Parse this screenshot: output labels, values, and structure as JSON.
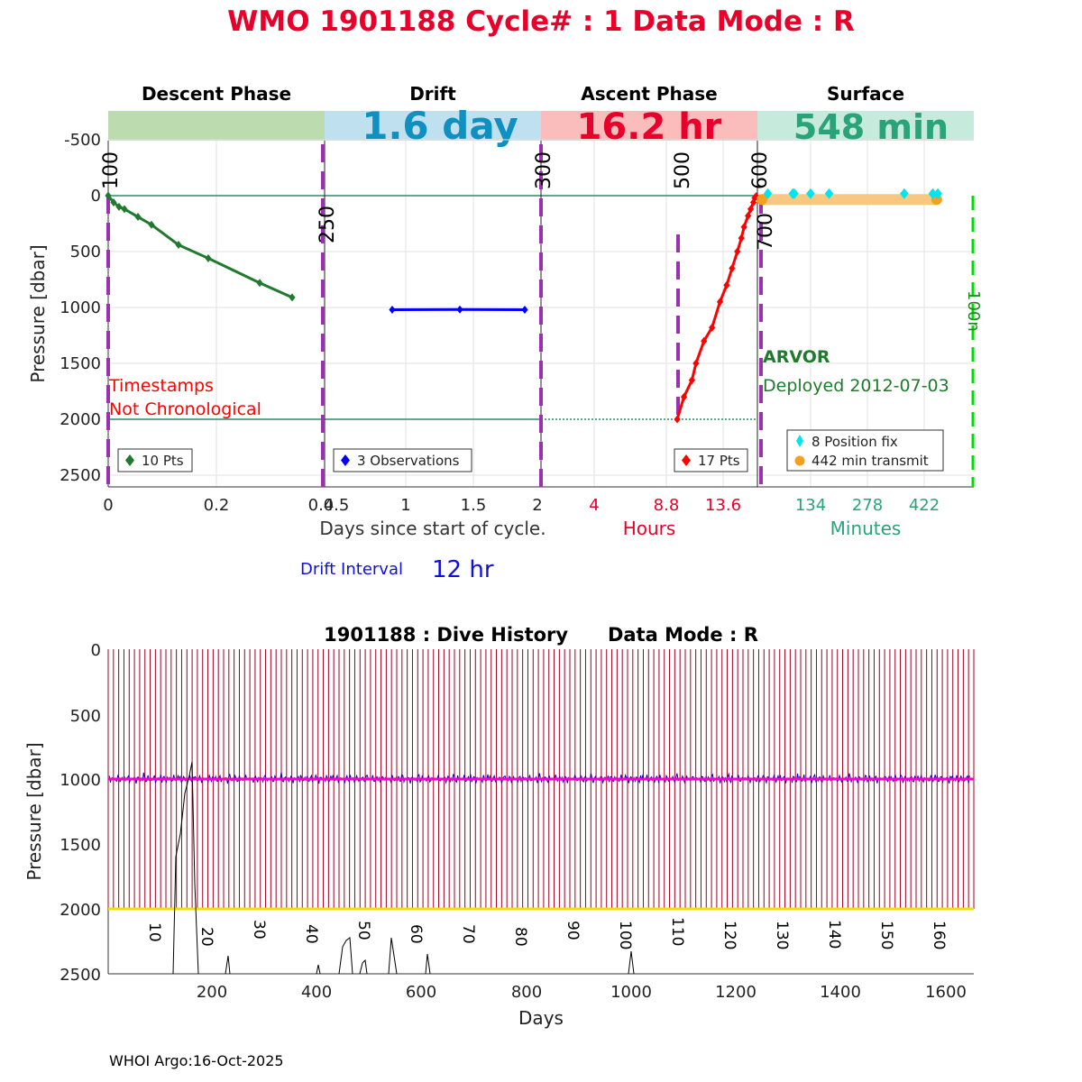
{
  "header": {
    "title": "WMO 1901188   Cycle# : 1   Data Mode : R"
  },
  "colors": {
    "title": "#e8002a",
    "descent": "#1f7a2e",
    "drift": "#0000ff",
    "ascent": "#ff0000",
    "surface_fix": "#00e5ee",
    "surface_transmit": "#f5a020",
    "surface_text": "#2aa27a",
    "phase_guide": "#9b30b0",
    "surface_limit": "#00dd00",
    "history_cycle_lines": "#a00020",
    "history_drift": "#0000cc",
    "history_target": "#ff00cc",
    "history_max_depth": "#f0e000"
  },
  "panels": {
    "descent": {
      "header": "Descent Phase",
      "legend": "10 Pts",
      "annotation_line1": "Timestamps",
      "annotation_line2": "Not Chronological",
      "ticks": [
        "0",
        "0.2",
        "0.4"
      ]
    },
    "drift": {
      "header": "Drift",
      "duration": "1.6 day",
      "legend": "3 Observations",
      "ticks": [
        "0.5",
        "1",
        "1.5",
        "2"
      ]
    },
    "ascent": {
      "header": "Ascent Phase",
      "duration": "16.2 hr",
      "legend": "17 Pts",
      "ticks": [
        "4",
        "8.8",
        "13.6"
      ],
      "xlabel": "Hours"
    },
    "surface": {
      "header": "Surface",
      "duration": "548 min",
      "legend_fix": "8 Position fix",
      "legend_transmit": "442 min transmit",
      "ticks": [
        "134",
        "278",
        "422"
      ],
      "xlabel": "Minutes",
      "float_type": "ARVOR",
      "deployed": "Deployed 2012-07-03",
      "limit_label": "100n"
    }
  },
  "top_axis": {
    "ylabel": "Pressure [dbar]",
    "xlabel": "Days since start of cycle.",
    "yticks": [
      "-500",
      "0",
      "500",
      "1000",
      "1500",
      "2000",
      "2500"
    ]
  },
  "depth_marks": [
    "100",
    "250",
    "300",
    "500",
    "600",
    "700"
  ],
  "drift_interval": {
    "label": "Drift Interval",
    "value": "12 hr"
  },
  "history": {
    "title": "1901188 : Dive History      Data Mode : R",
    "ylabel": "Pressure [dbar]",
    "xlabel": "Days",
    "yticks": [
      "0",
      "500",
      "1000",
      "1500",
      "2000",
      "2500"
    ],
    "xticks": [
      "200",
      "400",
      "600",
      "800",
      "1000",
      "1200",
      "1400",
      "1600"
    ],
    "cycle_labels": [
      "10",
      "20",
      "30",
      "40",
      "50",
      "60",
      "70",
      "80",
      "90",
      "100",
      "110",
      "120",
      "130",
      "140",
      "150",
      "160"
    ]
  },
  "footer": {
    "credit": "WHOI Argo:16-Oct-2025"
  },
  "chart_data": [
    {
      "type": "line",
      "title": "Descent Phase",
      "xlabel": "Days since start of cycle.",
      "ylabel": "Pressure [dbar]",
      "xlim": [
        0,
        0.4
      ],
      "ylim": [
        2600,
        -600
      ],
      "series": [
        {
          "name": "10 Pts",
          "x": [
            0,
            0.01,
            0.02,
            0.03,
            0.055,
            0.08,
            0.13,
            0.185,
            0.28,
            0.34
          ],
          "y": [
            0,
            60,
            100,
            120,
            190,
            260,
            440,
            560,
            780,
            910
          ]
        }
      ]
    },
    {
      "type": "line",
      "title": "Drift",
      "xlabel": "Days since start of cycle.",
      "ylabel": "Pressure [dbar]",
      "xlim": [
        0.4,
        2
      ],
      "ylim": [
        2600,
        -600
      ],
      "series": [
        {
          "name": "3 Observations",
          "x": [
            0.9,
            1.4,
            1.88
          ],
          "y": [
            1020,
            1018,
            1020
          ]
        }
      ]
    },
    {
      "type": "line",
      "title": "Ascent Phase",
      "xlabel": "Hours",
      "ylabel": "Pressure [dbar]",
      "xlim": [
        0,
        16.2
      ],
      "ylim": [
        2600,
        -600
      ],
      "series": [
        {
          "name": "17 Pts",
          "x": [
            10.2,
            10.7,
            11.3,
            11.6,
            12.2,
            12.8,
            13.4,
            13.9,
            14.3,
            14.7,
            15.0,
            15.2,
            15.5,
            15.7,
            15.9,
            16.0,
            16.1
          ],
          "y": [
            2000,
            1800,
            1650,
            1500,
            1300,
            1180,
            950,
            800,
            650,
            500,
            380,
            280,
            180,
            120,
            60,
            20,
            5
          ]
        }
      ]
    },
    {
      "type": "scatter",
      "title": "Surface",
      "xlabel": "Minutes",
      "ylabel": "Pressure [dbar]",
      "xlim": [
        0,
        548
      ],
      "ylim": [
        2600,
        -600
      ],
      "series": [
        {
          "name": "8 Position fix",
          "x": [
            15,
            78,
            82,
            123,
            170,
            360,
            432,
            445
          ],
          "y": [
            -50,
            -50,
            -50,
            -50,
            -50,
            -50,
            -50,
            -50
          ]
        },
        {
          "name": "442 min transmit",
          "x": [
            0,
            442
          ],
          "y": [
            50,
            50
          ]
        }
      ]
    },
    {
      "type": "line",
      "title": "1901188 : Dive History      Data Mode : R",
      "xlabel": "Days",
      "ylabel": "Pressure [dbar]",
      "xlim": [
        0,
        1650
      ],
      "ylim": [
        2500,
        0
      ],
      "series": [
        {
          "name": "Park pressure",
          "x": [
            0,
            1650
          ],
          "y": [
            1000,
            1000
          ]
        },
        {
          "name": "Profile pressure",
          "x": [
            0,
            1650
          ],
          "y": [
            2000,
            2000
          ]
        }
      ]
    }
  ]
}
